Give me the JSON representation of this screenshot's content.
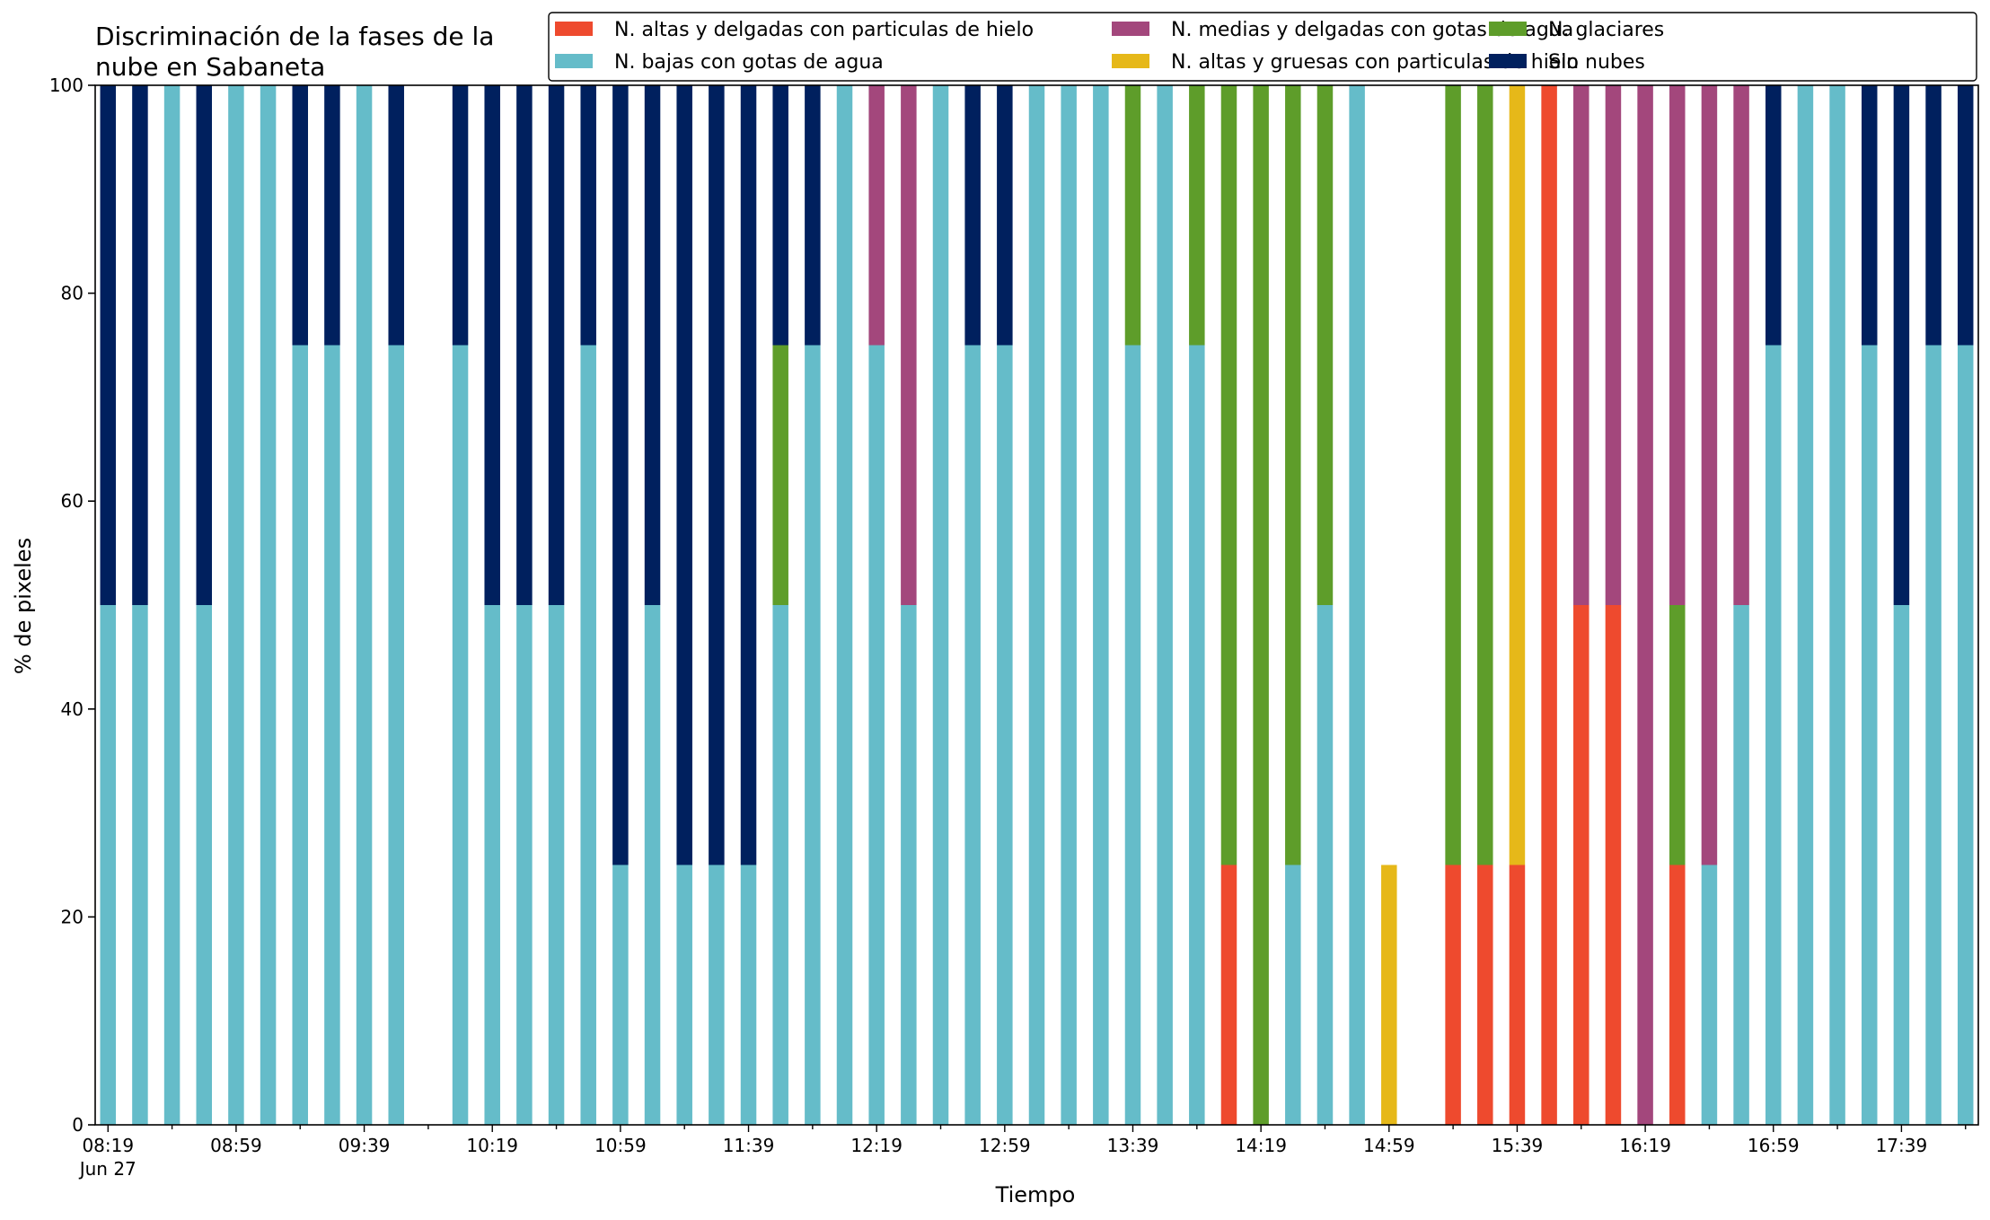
{
  "chart_data": {
    "type": "bar",
    "stacked": true,
    "title": "Discriminación de la fases de la nube en Sabaneta",
    "title_lines": [
      "Discriminación de la fases de la",
      "nube en Sabaneta"
    ],
    "xlabel": "Tiempo",
    "ylabel": "% de pixeles",
    "ylim": [
      0,
      100
    ],
    "yticks": [
      0,
      20,
      40,
      60,
      80,
      100
    ],
    "x_unit": "minutes past 08:19 on Jun 27",
    "xlim_minutes": [
      -4,
      584
    ],
    "xtick_labels": [
      {
        "label": "08:19",
        "sub": "Jun 27",
        "t": 0
      },
      {
        "label": "08:59",
        "t": 40
      },
      {
        "label": "09:39",
        "t": 80
      },
      {
        "label": "10:19",
        "t": 120
      },
      {
        "label": "10:59",
        "t": 160
      },
      {
        "label": "11:39",
        "t": 200
      },
      {
        "label": "12:19",
        "t": 240
      },
      {
        "label": "12:59",
        "t": 280
      },
      {
        "label": "13:39",
        "t": 320
      },
      {
        "label": "14:19",
        "t": 360
      },
      {
        "label": "14:59",
        "t": 400
      },
      {
        "label": "15:39",
        "t": 440
      },
      {
        "label": "16:19",
        "t": 480
      },
      {
        "label": "16:59",
        "t": 520
      },
      {
        "label": "17:39",
        "t": 560
      }
    ],
    "legend_placement": "top-right",
    "legend_order": [
      "ANDH",
      "NBGA",
      "NMDGA",
      "ANGH",
      "NG",
      "SN"
    ],
    "series": [
      {
        "key": "ANDH",
        "name": "N. altas y delgadas con particulas de hielo",
        "color": "#ee4a2e"
      },
      {
        "key": "ANGH",
        "name": "N. altas y gruesas con particulas de hielo",
        "color": "#e6b819"
      },
      {
        "key": "NBGA",
        "name": "N. bajas con gotas de agua",
        "color": "#65bcc9"
      },
      {
        "key": "NG",
        "name": "N. glaciares",
        "color": "#5e9d2a"
      },
      {
        "key": "NMDGA",
        "name": "N. medias y delgadas con gotas de agua",
        "color": "#a3477c"
      },
      {
        "key": "SN",
        "name": "Sin nubes",
        "color": "#00205e"
      }
    ],
    "stack_order": [
      "ANDH",
      "ANGH",
      "NBGA",
      "NG",
      "NMDGA",
      "SN"
    ],
    "bars": [
      {
        "t": 0,
        "values": {
          "NBGA": 50,
          "SN": 50
        }
      },
      {
        "t": 10,
        "values": {
          "NBGA": 50,
          "SN": 50
        }
      },
      {
        "t": 20,
        "values": {
          "NBGA": 100
        }
      },
      {
        "t": 30,
        "values": {
          "NBGA": 50,
          "SN": 50
        }
      },
      {
        "t": 40,
        "values": {
          "NBGA": 100
        }
      },
      {
        "t": 50,
        "values": {
          "NBGA": 100
        }
      },
      {
        "t": 60,
        "values": {
          "NBGA": 75,
          "SN": 25
        }
      },
      {
        "t": 70,
        "values": {
          "NBGA": 75,
          "SN": 25
        }
      },
      {
        "t": 80,
        "values": {
          "NBGA": 100
        }
      },
      {
        "t": 90,
        "values": {
          "NBGA": 75,
          "SN": 25
        }
      },
      {
        "t": 110,
        "values": {
          "NBGA": 75,
          "SN": 25
        }
      },
      {
        "t": 120,
        "values": {
          "NBGA": 50,
          "SN": 50
        }
      },
      {
        "t": 130,
        "values": {
          "NBGA": 50,
          "SN": 50
        }
      },
      {
        "t": 140,
        "values": {
          "NBGA": 50,
          "SN": 50
        }
      },
      {
        "t": 150,
        "values": {
          "NBGA": 75,
          "SN": 25
        }
      },
      {
        "t": 160,
        "values": {
          "NBGA": 25,
          "SN": 75
        }
      },
      {
        "t": 170,
        "values": {
          "NBGA": 50,
          "SN": 50
        }
      },
      {
        "t": 180,
        "values": {
          "NBGA": 25,
          "SN": 75
        }
      },
      {
        "t": 190,
        "values": {
          "NBGA": 25,
          "SN": 75
        }
      },
      {
        "t": 200,
        "values": {
          "NBGA": 25,
          "SN": 75
        }
      },
      {
        "t": 210,
        "values": {
          "NBGA": 50,
          "NG": 25,
          "SN": 25
        }
      },
      {
        "t": 220,
        "values": {
          "NBGA": 75,
          "SN": 25
        }
      },
      {
        "t": 230,
        "values": {
          "NBGA": 100
        }
      },
      {
        "t": 240,
        "values": {
          "NBGA": 75,
          "NMDGA": 25
        }
      },
      {
        "t": 250,
        "values": {
          "NBGA": 50,
          "NMDGA": 50
        }
      },
      {
        "t": 260,
        "values": {
          "NBGA": 100
        }
      },
      {
        "t": 270,
        "values": {
          "NBGA": 75,
          "SN": 25
        }
      },
      {
        "t": 280,
        "values": {
          "NBGA": 75,
          "SN": 25
        }
      },
      {
        "t": 290,
        "values": {
          "NBGA": 100
        }
      },
      {
        "t": 300,
        "values": {
          "NBGA": 100
        }
      },
      {
        "t": 310,
        "values": {
          "NBGA": 100
        }
      },
      {
        "t": 320,
        "values": {
          "NBGA": 75,
          "NG": 25
        }
      },
      {
        "t": 330,
        "values": {
          "NBGA": 100
        }
      },
      {
        "t": 340,
        "values": {
          "NBGA": 75,
          "NG": 25
        }
      },
      {
        "t": 350,
        "values": {
          "ANDH": 25,
          "NG": 75
        }
      },
      {
        "t": 360,
        "values": {
          "NG": 100
        }
      },
      {
        "t": 370,
        "values": {
          "NBGA": 25,
          "NG": 75
        }
      },
      {
        "t": 380,
        "values": {
          "NBGA": 50,
          "NG": 50
        }
      },
      {
        "t": 390,
        "values": {
          "NBGA": 100
        }
      },
      {
        "t": 400,
        "values": {
          "ANGH": 25
        }
      },
      {
        "t": 420,
        "values": {
          "ANDH": 25,
          "NG": 75
        }
      },
      {
        "t": 430,
        "values": {
          "ANDH": 25,
          "NG": 75
        }
      },
      {
        "t": 440,
        "values": {
          "ANDH": 25,
          "ANGH": 75
        }
      },
      {
        "t": 450,
        "values": {
          "ANDH": 100
        }
      },
      {
        "t": 460,
        "values": {
          "ANDH": 50,
          "NMDGA": 50
        }
      },
      {
        "t": 470,
        "values": {
          "ANDH": 50,
          "NMDGA": 50
        }
      },
      {
        "t": 480,
        "values": {
          "NMDGA": 100
        }
      },
      {
        "t": 490,
        "values": {
          "ANDH": 25,
          "NG": 25,
          "NMDGA": 50
        }
      },
      {
        "t": 500,
        "values": {
          "NBGA": 25,
          "NMDGA": 75
        }
      },
      {
        "t": 510,
        "values": {
          "NBGA": 50,
          "NMDGA": 50
        }
      },
      {
        "t": 520,
        "values": {
          "NBGA": 75,
          "SN": 25
        }
      },
      {
        "t": 530,
        "values": {
          "NBGA": 100
        }
      },
      {
        "t": 540,
        "values": {
          "NBGA": 100
        }
      },
      {
        "t": 550,
        "values": {
          "NBGA": 75,
          "SN": 25
        }
      },
      {
        "t": 560,
        "values": {
          "NBGA": 50,
          "SN": 50
        }
      },
      {
        "t": 570,
        "values": {
          "NBGA": 75,
          "SN": 25
        }
      },
      {
        "t": 580,
        "values": {
          "NBGA": 75,
          "SN": 25
        }
      }
    ]
  }
}
